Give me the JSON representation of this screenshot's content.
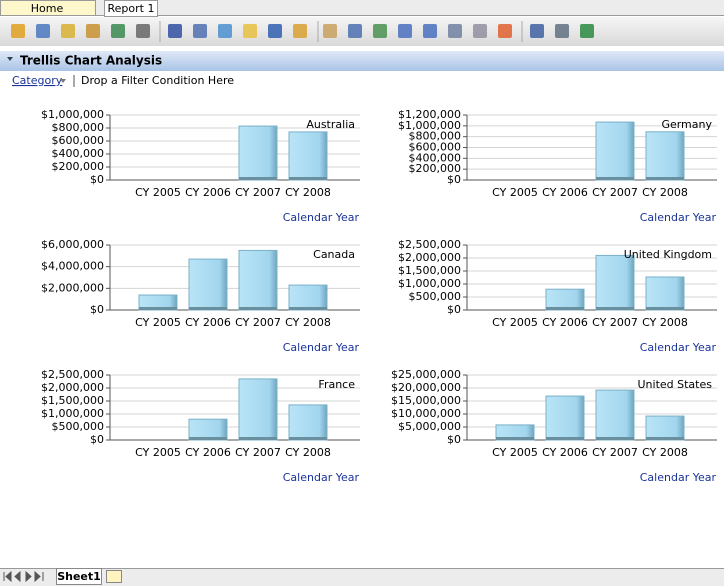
{
  "tabs": [
    "Home",
    "Report 1"
  ],
  "section_title": "Trellis Chart Analysis",
  "filter": {
    "field": "Category",
    "placeholder": "Drop a Filter Condition Here"
  },
  "sheet_tabs": [
    "Sheet1"
  ],
  "chart_data": [
    {
      "type": "bar",
      "title": "Australia",
      "x_label": "Calendar Year",
      "categories": [
        "CY 2005",
        "CY 2006",
        "CY 2007",
        "CY 2008"
      ],
      "values": [
        null,
        null,
        830000,
        740000
      ],
      "color": "#a9dcf2",
      "grid": true,
      "ylim": [
        0,
        1000000
      ],
      "yticks": [
        {
          "value": 0,
          "label": "$0"
        },
        {
          "value": 200000,
          "label": "$200,000"
        },
        {
          "value": 400000,
          "label": "$400,000"
        },
        {
          "value": 600000,
          "label": "$600,000"
        },
        {
          "value": 800000,
          "label": "$800,000"
        },
        {
          "value": 1000000,
          "label": "$1,000,000"
        }
      ]
    },
    {
      "type": "bar",
      "title": "Germany",
      "x_label": "Calendar Year",
      "categories": [
        "CY 2005",
        "CY 2006",
        "CY 2007",
        "CY 2008"
      ],
      "values": [
        null,
        null,
        1070000,
        890000
      ],
      "color": "#a9dcf2",
      "grid": true,
      "ylim": [
        0,
        1200000
      ],
      "yticks": [
        {
          "value": 0,
          "label": "$0"
        },
        {
          "value": 200000,
          "label": "$200,000"
        },
        {
          "value": 400000,
          "label": "$400,000"
        },
        {
          "value": 600000,
          "label": "$600,000"
        },
        {
          "value": 800000,
          "label": "$800,000"
        },
        {
          "value": 1000000,
          "label": "$1,000,000"
        },
        {
          "value": 1200000,
          "label": "$1,200,000"
        }
      ]
    },
    {
      "type": "bar",
      "title": "Canada",
      "x_label": "Calendar Year",
      "categories": [
        "CY 2005",
        "CY 2006",
        "CY 2007",
        "CY 2008"
      ],
      "values": [
        1380000,
        4700000,
        5500000,
        2300000
      ],
      "color": "#a9dcf2",
      "grid": true,
      "ylim": [
        0,
        6000000
      ],
      "yticks": [
        {
          "value": 0,
          "label": "$0"
        },
        {
          "value": 2000000,
          "label": "$2,000,000"
        },
        {
          "value": 4000000,
          "label": "$4,000,000"
        },
        {
          "value": 6000000,
          "label": "$6,000,000"
        }
      ]
    },
    {
      "type": "bar",
      "title": "United Kingdom",
      "x_label": "Calendar Year",
      "categories": [
        "CY 2005",
        "CY 2006",
        "CY 2007",
        "CY 2008"
      ],
      "values": [
        null,
        800000,
        2100000,
        1270000
      ],
      "color": "#a9dcf2",
      "grid": true,
      "ylim": [
        0,
        2500000
      ],
      "yticks": [
        {
          "value": 0,
          "label": "$0"
        },
        {
          "value": 500000,
          "label": "$500,000"
        },
        {
          "value": 1000000,
          "label": "$1,000,000"
        },
        {
          "value": 1500000,
          "label": "$1,500,000"
        },
        {
          "value": 2000000,
          "label": "$2,000,000"
        },
        {
          "value": 2500000,
          "label": "$2,500,000"
        }
      ]
    },
    {
      "type": "bar",
      "title": "France",
      "x_label": "Calendar Year",
      "categories": [
        "CY 2005",
        "CY 2006",
        "CY 2007",
        "CY 2008"
      ],
      "values": [
        null,
        800000,
        2350000,
        1350000
      ],
      "color": "#a9dcf2",
      "grid": true,
      "ylim": [
        0,
        2500000
      ],
      "yticks": [
        {
          "value": 0,
          "label": "$0"
        },
        {
          "value": 500000,
          "label": "$500,000"
        },
        {
          "value": 1000000,
          "label": "$1,000,000"
        },
        {
          "value": 1500000,
          "label": "$1,500,000"
        },
        {
          "value": 2000000,
          "label": "$2,000,000"
        },
        {
          "value": 2500000,
          "label": "$2,500,000"
        }
      ]
    },
    {
      "type": "bar",
      "title": "United States",
      "x_label": "Calendar Year",
      "categories": [
        "CY 2005",
        "CY 2006",
        "CY 2007",
        "CY 2008"
      ],
      "values": [
        5800000,
        16900000,
        19200000,
        9200000
      ],
      "color": "#a9dcf2",
      "grid": true,
      "ylim": [
        0,
        25000000
      ],
      "yticks": [
        {
          "value": 0,
          "label": "$0"
        },
        {
          "value": 5000000,
          "label": "$5,000,000"
        },
        {
          "value": 10000000,
          "label": "$10,000,000"
        },
        {
          "value": 15000000,
          "label": "$15,000,000"
        },
        {
          "value": 20000000,
          "label": "$20,000,000"
        },
        {
          "value": 25000000,
          "label": "$25,000,000"
        }
      ]
    }
  ]
}
